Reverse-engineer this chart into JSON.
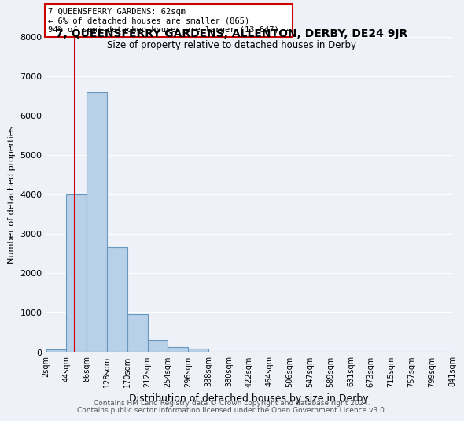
{
  "title": "7, QUEENSFERRY GARDENS, ALLENTON, DERBY, DE24 9JR",
  "subtitle": "Size of property relative to detached houses in Derby",
  "xlabel": "Distribution of detached houses by size in Derby",
  "ylabel": "Number of detached properties",
  "bin_labels": [
    "2sqm",
    "44sqm",
    "86sqm",
    "128sqm",
    "170sqm",
    "212sqm",
    "254sqm",
    "296sqm",
    "338sqm",
    "380sqm",
    "422sqm",
    "464sqm",
    "506sqm",
    "547sqm",
    "589sqm",
    "631sqm",
    "673sqm",
    "715sqm",
    "757sqm",
    "799sqm",
    "841sqm"
  ],
  "bar_values": [
    65,
    4000,
    6600,
    2650,
    950,
    300,
    110,
    75,
    0,
    0,
    0,
    0,
    0,
    0,
    0,
    0,
    0,
    0,
    0,
    0
  ],
  "bar_color": "#b8d0e8",
  "bar_edge_color": "#6699bb",
  "red_line_x": 1.45,
  "annotation_text": "7 QUEENSFERRY GARDENS: 62sqm\n← 6% of detached houses are smaller (865)\n94% of semi-detached houses are larger (13,647) →",
  "annotation_box_color": "#ffffff",
  "annotation_box_edge_color": "#cc0000",
  "red_line_color": "#cc0000",
  "footer_line1": "Contains HM Land Registry data © Crown copyright and database right 2024.",
  "footer_line2": "Contains public sector information licensed under the Open Government Licence v3.0.",
  "ylim": [
    0,
    8000
  ],
  "yticks": [
    0,
    1000,
    2000,
    3000,
    4000,
    5000,
    6000,
    7000,
    8000
  ],
  "background_color": "#eef2f8",
  "grid_color": "#ffffff"
}
